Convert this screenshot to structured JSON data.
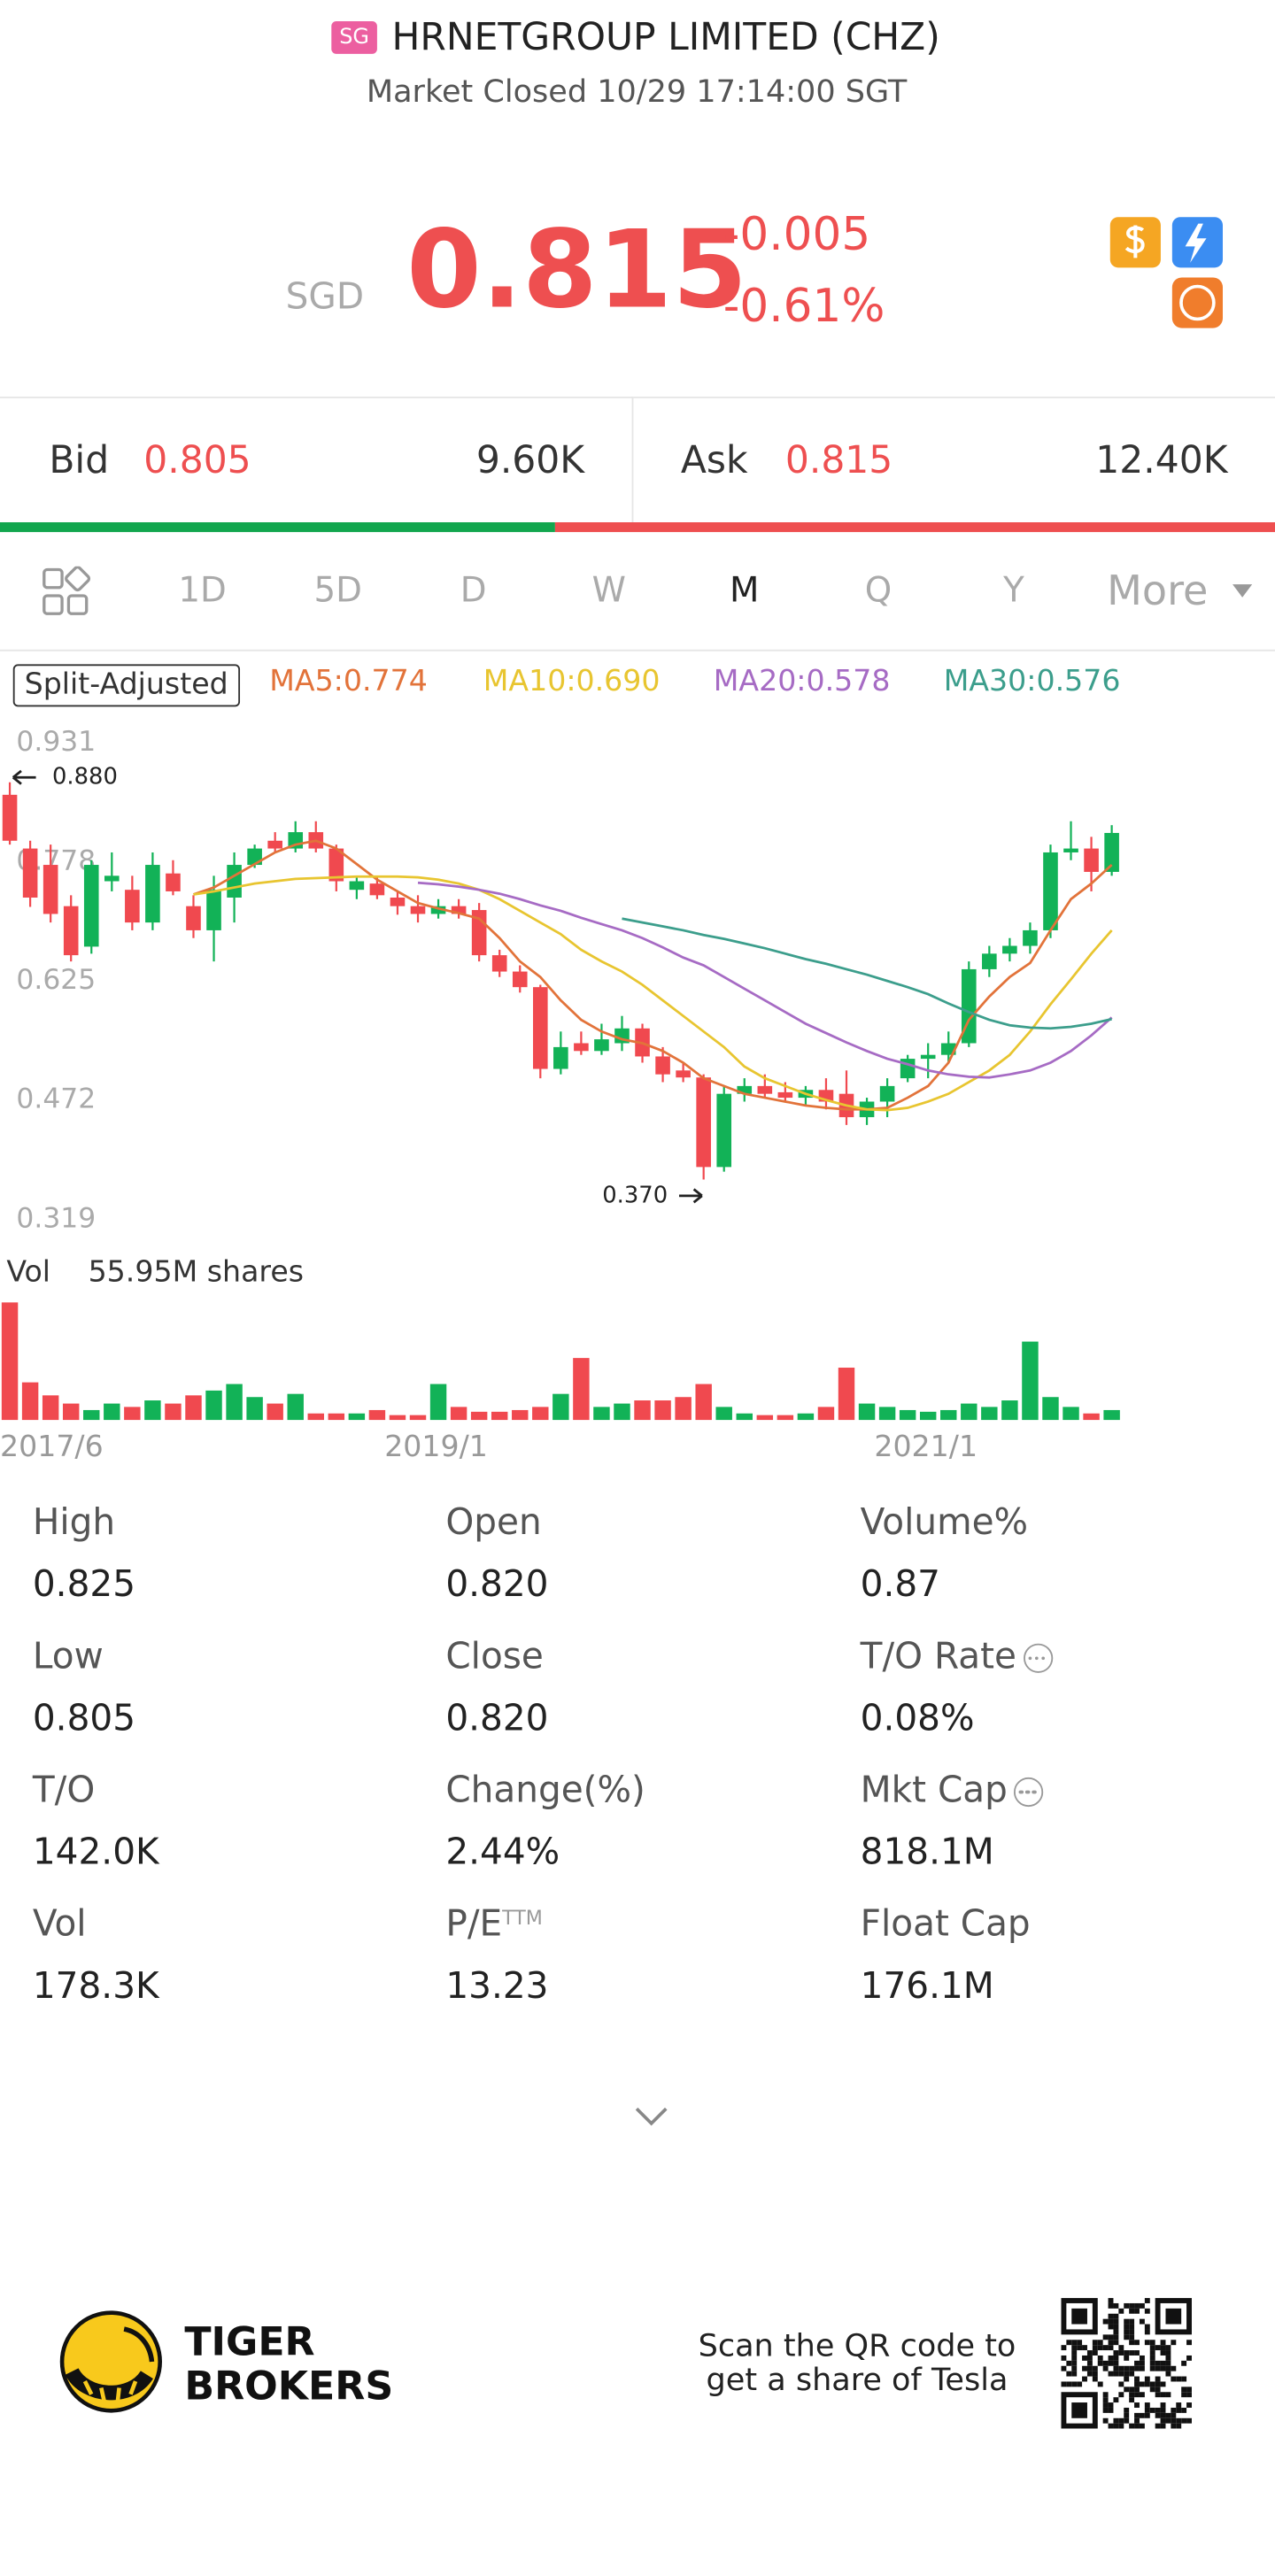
{
  "header": {
    "badge": "SG",
    "title": "HRNETGROUP LIMITED (CHZ)",
    "status": "Market Closed 10/29 17:14:00 SGT"
  },
  "quote": {
    "currency": "SGD",
    "price": "0.815",
    "change": "-0.005",
    "change_pct": "-0.61%"
  },
  "bid": {
    "label": "Bid",
    "price": "0.805",
    "size": "9.60K"
  },
  "ask": {
    "label": "Ask",
    "price": "0.815",
    "size": "12.40K"
  },
  "tabs": [
    "1D",
    "5D",
    "D",
    "W",
    "M",
    "Q",
    "Y",
    "More"
  ],
  "active_tab": "M",
  "chart_data": {
    "type": "candlestick",
    "adjust_label": "Split-Adjusted",
    "up_color": "#12b257",
    "down_color": "#f0494f",
    "categories": [
      "2017/6",
      null,
      null,
      null,
      null,
      null,
      null,
      null,
      null,
      null,
      null,
      null,
      null,
      null,
      null,
      null,
      null,
      null,
      null,
      "2019/1",
      null,
      null,
      null,
      null,
      null,
      null,
      null,
      null,
      null,
      null,
      null,
      null,
      null,
      null,
      null,
      null,
      null,
      null,
      null,
      null,
      null,
      null,
      null,
      "2021/1",
      null,
      null,
      null,
      null,
      null,
      null,
      null,
      null,
      null,
      null,
      null
    ],
    "open": [
      0.864,
      0.795,
      0.774,
      0.721,
      0.669,
      0.753,
      0.742,
      0.7,
      0.763,
      0.721,
      0.69,
      0.732,
      0.774,
      0.805,
      0.795,
      0.816,
      0.795,
      0.742,
      0.75,
      0.732,
      0.721,
      0.711,
      0.721,
      0.716,
      0.658,
      0.637,
      0.617,
      0.512,
      0.545,
      0.535,
      0.545,
      0.564,
      0.528,
      0.51,
      0.501,
      0.386,
      0.48,
      0.49,
      0.482,
      0.475,
      0.485,
      0.48,
      0.45,
      0.47,
      0.5,
      0.525,
      0.53,
      0.545,
      0.64,
      0.66,
      0.67,
      0.69,
      0.79,
      0.795,
      0.765
    ],
    "high": [
      0.88,
      0.805,
      0.8,
      0.735,
      0.78,
      0.79,
      0.76,
      0.79,
      0.78,
      0.735,
      0.76,
      0.79,
      0.8,
      0.816,
      0.83,
      0.83,
      0.8,
      0.76,
      0.76,
      0.74,
      0.735,
      0.73,
      0.73,
      0.725,
      0.665,
      0.645,
      0.62,
      0.56,
      0.56,
      0.57,
      0.58,
      0.57,
      0.54,
      0.52,
      0.505,
      0.49,
      0.5,
      0.505,
      0.495,
      0.49,
      0.5,
      0.51,
      0.475,
      0.5,
      0.53,
      0.545,
      0.56,
      0.65,
      0.67,
      0.68,
      0.7,
      0.8,
      0.83,
      0.81,
      0.825
    ],
    "low": [
      0.8,
      0.72,
      0.7,
      0.65,
      0.66,
      0.74,
      0.69,
      0.69,
      0.735,
      0.68,
      0.65,
      0.7,
      0.77,
      0.79,
      0.79,
      0.79,
      0.74,
      0.73,
      0.73,
      0.71,
      0.7,
      0.705,
      0.705,
      0.65,
      0.63,
      0.61,
      0.5,
      0.505,
      0.53,
      0.53,
      0.535,
      0.52,
      0.495,
      0.495,
      0.37,
      0.38,
      0.47,
      0.475,
      0.47,
      0.465,
      0.46,
      0.44,
      0.44,
      0.45,
      0.495,
      0.5,
      0.52,
      0.54,
      0.63,
      0.65,
      0.66,
      0.68,
      0.78,
      0.74,
      0.76
    ],
    "close": [
      0.805,
      0.732,
      0.711,
      0.658,
      0.774,
      0.76,
      0.7,
      0.774,
      0.74,
      0.69,
      0.742,
      0.774,
      0.795,
      0.795,
      0.816,
      0.795,
      0.753,
      0.753,
      0.735,
      0.721,
      0.711,
      0.721,
      0.711,
      0.658,
      0.637,
      0.617,
      0.512,
      0.54,
      0.535,
      0.55,
      0.564,
      0.528,
      0.505,
      0.501,
      0.386,
      0.48,
      0.49,
      0.48,
      0.475,
      0.485,
      0.47,
      0.45,
      0.47,
      0.49,
      0.525,
      0.53,
      0.545,
      0.64,
      0.66,
      0.67,
      0.69,
      0.79,
      0.795,
      0.765,
      0.815
    ],
    "ylim": [
      0.319,
      0.931
    ],
    "yticks": [
      0.931,
      0.778,
      0.625,
      0.472,
      0.319
    ],
    "high_marker": {
      "value": 0.88,
      "label": "0.880"
    },
    "low_marker": {
      "value": 0.37,
      "label": "0.370"
    },
    "ma_series": [
      {
        "name": "MA5:0.774",
        "color": "#e2733a",
        "values": [
          null,
          null,
          null,
          null,
          null,
          null,
          null,
          null,
          null,
          0.736,
          0.745,
          0.76,
          0.775,
          0.79,
          0.8,
          0.805,
          0.795,
          0.775,
          0.755,
          0.74,
          0.725,
          0.718,
          0.712,
          0.705,
          0.68,
          0.65,
          0.63,
          0.6,
          0.575,
          0.56,
          0.55,
          0.545,
          0.535,
          0.52,
          0.5,
          0.49,
          0.48,
          0.475,
          0.47,
          0.465,
          0.462,
          0.46,
          0.46,
          0.462,
          0.475,
          0.49,
          0.52,
          0.575,
          0.605,
          0.63,
          0.648,
          0.69,
          0.73,
          0.75,
          0.774
        ]
      },
      {
        "name": "MA10:0.690",
        "color": "#e8c530",
        "values": [
          null,
          null,
          null,
          null,
          null,
          null,
          null,
          null,
          null,
          0.736,
          0.74,
          0.745,
          0.75,
          0.753,
          0.756,
          0.757,
          0.758,
          0.759,
          0.759,
          0.759,
          0.758,
          0.755,
          0.75,
          0.742,
          0.73,
          0.715,
          0.7,
          0.685,
          0.665,
          0.65,
          0.637,
          0.62,
          0.6,
          0.58,
          0.56,
          0.54,
          0.515,
          0.5,
          0.49,
          0.48,
          0.472,
          0.465,
          0.46,
          0.459,
          0.462,
          0.47,
          0.48,
          0.495,
          0.51,
          0.53,
          0.56,
          0.595,
          0.627,
          0.66,
          0.69
        ]
      },
      {
        "name": "MA20:0.578",
        "color": "#a66bc4",
        "values": [
          null,
          null,
          null,
          null,
          null,
          null,
          null,
          null,
          null,
          null,
          null,
          null,
          null,
          null,
          null,
          null,
          null,
          null,
          null,
          null,
          0.751,
          0.749,
          0.746,
          0.742,
          0.737,
          0.73,
          0.722,
          0.715,
          0.706,
          0.698,
          0.69,
          0.68,
          0.668,
          0.655,
          0.645,
          0.63,
          0.615,
          0.6,
          0.585,
          0.57,
          0.558,
          0.546,
          0.535,
          0.525,
          0.518,
          0.51,
          0.505,
          0.502,
          0.501,
          0.505,
          0.51,
          0.52,
          0.535,
          0.555,
          0.578
        ]
      },
      {
        "name": "MA30:0.576",
        "color": "#3c9e8c",
        "values": [
          null,
          null,
          null,
          null,
          null,
          null,
          null,
          null,
          null,
          null,
          null,
          null,
          null,
          null,
          null,
          null,
          null,
          null,
          null,
          null,
          null,
          null,
          null,
          null,
          null,
          null,
          null,
          null,
          null,
          null,
          0.705,
          0.7,
          0.695,
          0.69,
          0.684,
          0.679,
          0.673,
          0.667,
          0.66,
          0.653,
          0.647,
          0.64,
          0.633,
          0.625,
          0.617,
          0.608,
          0.596,
          0.585,
          0.575,
          0.568,
          0.565,
          0.564,
          0.566,
          0.57,
          0.576
        ]
      }
    ],
    "volume": {
      "label": "Vol",
      "max_label": "55.95M shares",
      "ylim": [
        0,
        55.95
      ],
      "values": [
        55.95,
        17.9,
        11.7,
        7.8,
        4.7,
        7.8,
        6.2,
        9.3,
        7.8,
        11.7,
        14,
        17.1,
        10.9,
        7.8,
        12.4,
        3.1,
        3.1,
        3.1,
        4.7,
        2.3,
        2.3,
        17.1,
        6.2,
        3.9,
        3.9,
        4.7,
        6.2,
        12.4,
        29.5,
        6.2,
        7.8,
        9.3,
        9.3,
        10.9,
        17.1,
        6.2,
        3.1,
        2.3,
        2.3,
        3.1,
        6.2,
        24.9,
        7.8,
        6.2,
        4.7,
        3.9,
        4.7,
        7.8,
        6.2,
        9.3,
        37.3,
        10.9,
        6.2,
        3.1,
        4.7
      ]
    }
  },
  "stats": [
    [
      {
        "label": "High",
        "value": "0.825"
      },
      {
        "label": "Open",
        "value": "0.820"
      },
      {
        "label": "Volume%",
        "value": "0.87"
      }
    ],
    [
      {
        "label": "Low",
        "value": "0.805"
      },
      {
        "label": "Close",
        "value": "0.820"
      },
      {
        "label": "T/O Rate",
        "value": "0.08%",
        "info_icon": true
      }
    ],
    [
      {
        "label": "T/O",
        "value": "142.0K"
      },
      {
        "label": "Change(%)",
        "value": "2.44%"
      },
      {
        "label": "Mkt Cap",
        "value": "818.1M",
        "info_icon": true
      }
    ],
    [
      {
        "label": "Vol",
        "value": "178.3K"
      },
      {
        "label": "P/E",
        "label_sup": "TTM",
        "value": "13.23"
      },
      {
        "label": "Float Cap",
        "value": "176.1M"
      }
    ]
  ],
  "footer": {
    "brand_line1": "TIGER",
    "brand_line2": "BROKERS",
    "promo_line1": "Scan the QR code to",
    "promo_line2": "get a share of Tesla"
  }
}
